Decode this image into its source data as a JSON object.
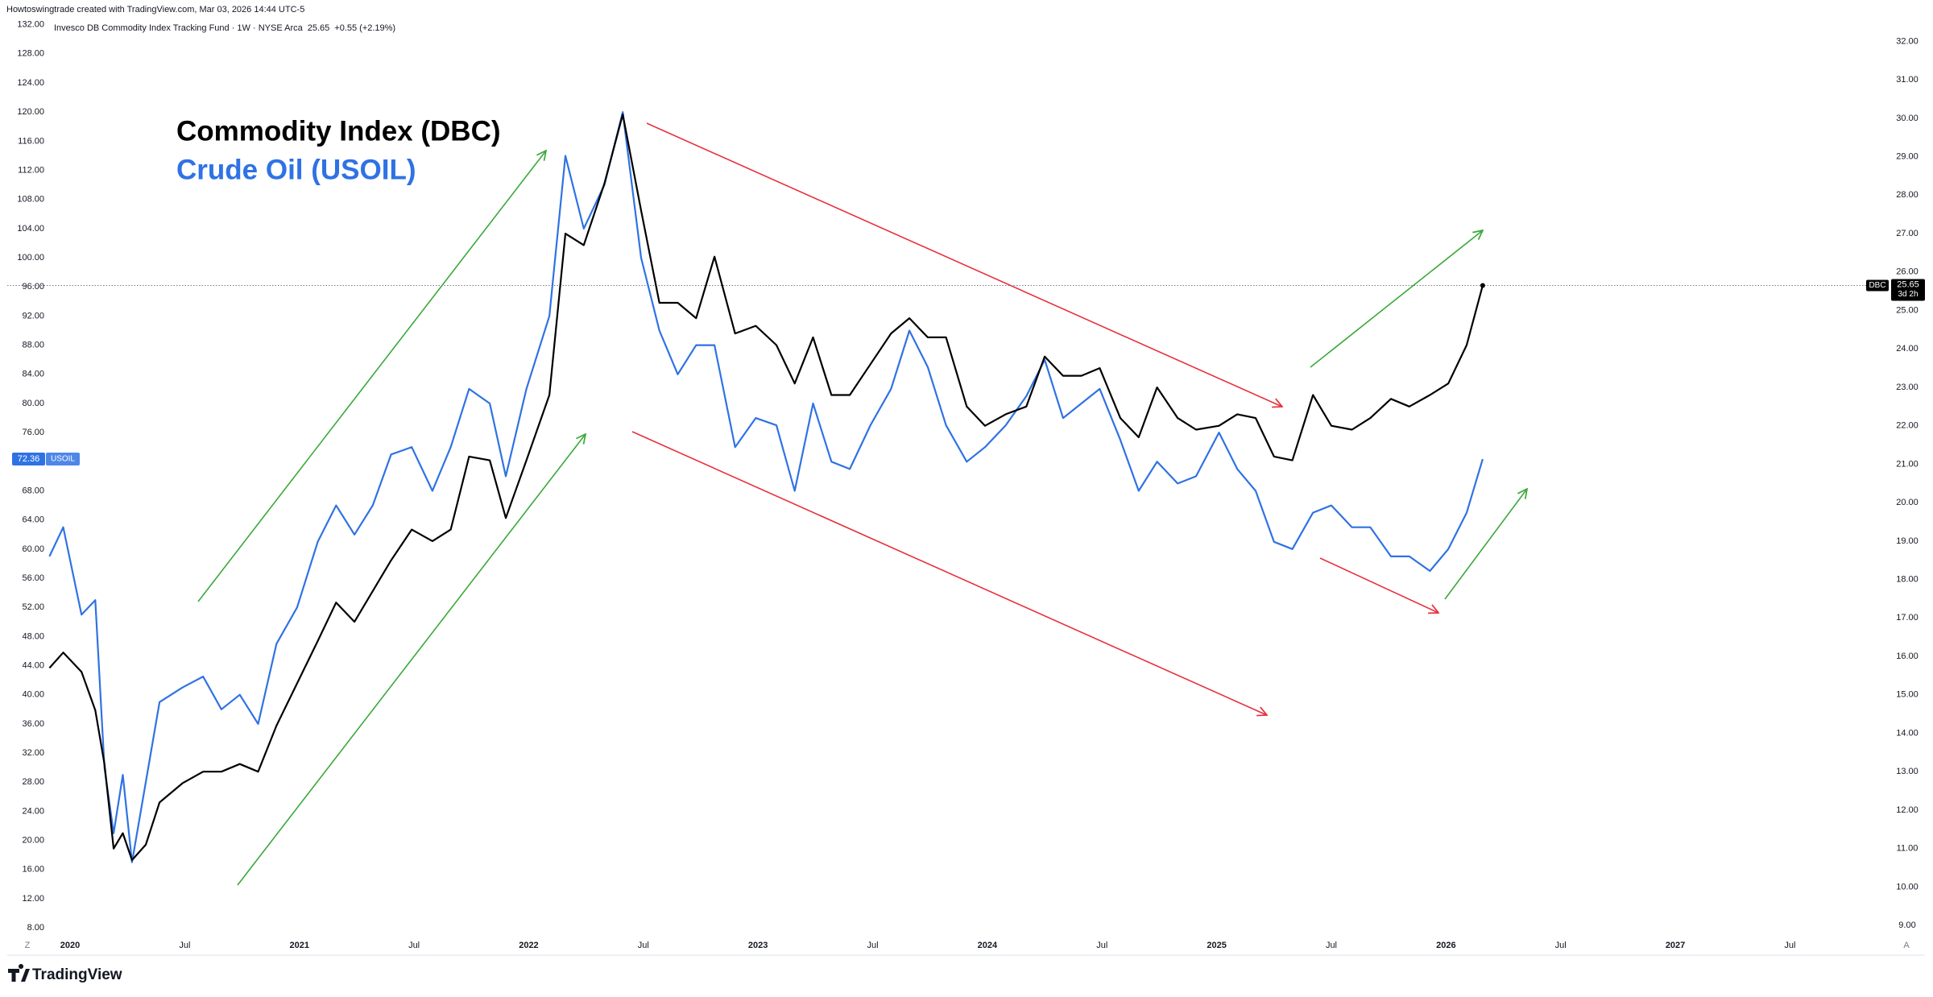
{
  "chart_data": {
    "type": "line",
    "attribution": "Howtoswingtrade created with TradingView.com, Mar 03, 2026 14:44 UTC-5",
    "symbol_title": "Invesco DB Commodity Index Tracking Fund · 1W · NYSE Arca",
    "change": "+0.55 (+2.19%)",
    "bar_countdown": "3d 2h",
    "scale_buttons": [
      "Z",
      "A"
    ],
    "brand": "TradingView",
    "grid": false,
    "x": [
      2019.91,
      2019.97,
      2020.05,
      2020.11,
      2020.15,
      2020.19,
      2020.23,
      2020.27,
      2020.33,
      2020.39,
      2020.49,
      2020.58,
      2020.66,
      2020.74,
      2020.82,
      2020.9,
      2020.99,
      2021.08,
      2021.16,
      2021.24,
      2021.32,
      2021.4,
      2021.49,
      2021.58,
      2021.66,
      2021.74,
      2021.83,
      2021.9,
      2021.99,
      2022.09,
      2022.16,
      2022.24,
      2022.33,
      2022.41,
      2022.49,
      2022.57,
      2022.65,
      2022.73,
      2022.81,
      2022.9,
      2022.99,
      2023.08,
      2023.16,
      2023.24,
      2023.32,
      2023.4,
      2023.49,
      2023.58,
      2023.66,
      2023.74,
      2023.82,
      2023.91,
      2023.99,
      2024.08,
      2024.17,
      2024.25,
      2024.33,
      2024.41,
      2024.49,
      2024.58,
      2024.66,
      2024.74,
      2024.83,
      2024.91,
      2025.01,
      2025.09,
      2025.17,
      2025.25,
      2025.33,
      2025.42,
      2025.5,
      2025.59,
      2025.67,
      2025.76,
      2025.84,
      2025.93,
      2026.01,
      2026.09,
      2026.16
    ],
    "xlim": [
      2019.726,
      2027.92
    ],
    "xticks": [
      2020,
      {
        "value": 2020.5,
        "label": "Jul"
      },
      2021,
      {
        "value": 2021.5,
        "label": "Jul"
      },
      2022,
      {
        "value": 2022.5,
        "label": "Jul"
      },
      2023,
      {
        "value": 2023.5,
        "label": "Jul"
      },
      2024,
      {
        "value": 2024.5,
        "label": "Jul"
      },
      2025,
      {
        "value": 2025.5,
        "label": "Jul"
      },
      2026,
      {
        "value": 2026.5,
        "label": "Jul"
      },
      2027,
      {
        "value": 2027.5,
        "label": "Jul"
      }
    ],
    "ylim": [
      6.8,
      133.4
    ],
    "yticks": [
      {
        "value": 8,
        "label": "8.00"
      },
      {
        "value": 12,
        "label": "12.00"
      },
      {
        "value": 16,
        "label": "16.00"
      },
      {
        "value": 20,
        "label": "20.00"
      },
      {
        "value": 24,
        "label": "24.00"
      },
      {
        "value": 28,
        "label": "28.00"
      },
      {
        "value": 32,
        "label": "32.00"
      },
      {
        "value": 36,
        "label": "36.00"
      },
      {
        "value": 40,
        "label": "40.00"
      },
      {
        "value": 44,
        "label": "44.00"
      },
      {
        "value": 48,
        "label": "48.00"
      },
      {
        "value": 52,
        "label": "52.00"
      },
      {
        "value": 56,
        "label": "56.00"
      },
      {
        "value": 60,
        "label": "60.00"
      },
      {
        "value": 64,
        "label": "64.00"
      },
      {
        "value": 68,
        "label": "68.00"
      },
      {
        "value": 72,
        "label": "72.00"
      },
      {
        "value": 76,
        "label": "76.00"
      },
      {
        "value": 80,
        "label": "80.00"
      },
      {
        "value": 84,
        "label": "84.00"
      },
      {
        "value": 88,
        "label": "88.00"
      },
      {
        "value": 92,
        "label": "92.00"
      },
      {
        "value": 96,
        "label": "96.00"
      },
      {
        "value": 100,
        "label": "100.00"
      },
      {
        "value": 104,
        "label": "104.00"
      },
      {
        "value": 108,
        "label": "108.00"
      },
      {
        "value": 112,
        "label": "112.00"
      },
      {
        "value": 116,
        "label": "116.00"
      },
      {
        "value": 120,
        "label": "120.00"
      },
      {
        "value": 124,
        "label": "124.00"
      },
      {
        "value": 128,
        "label": "128.00"
      },
      {
        "value": 132,
        "label": "132.00"
      }
    ],
    "y2lim": [
      8.71,
      32.7
    ],
    "y2ticks": [
      {
        "value": 9,
        "label": "9.00"
      },
      {
        "value": 10,
        "label": "10.00"
      },
      {
        "value": 11,
        "label": "11.00"
      },
      {
        "value": 12,
        "label": "12.00"
      },
      {
        "value": 13,
        "label": "13.00"
      },
      {
        "value": 14,
        "label": "14.00"
      },
      {
        "value": 15,
        "label": "15.00"
      },
      {
        "value": 16,
        "label": "16.00"
      },
      {
        "value": 17,
        "label": "17.00"
      },
      {
        "value": 18,
        "label": "18.00"
      },
      {
        "value": 19,
        "label": "19.00"
      },
      {
        "value": 20,
        "label": "20.00"
      },
      {
        "value": 21,
        "label": "21.00"
      },
      {
        "value": 22,
        "label": "22.00"
      },
      {
        "value": 23,
        "label": "23.00"
      },
      {
        "value": 24,
        "label": "24.00"
      },
      {
        "value": 25,
        "label": "25.00"
      },
      {
        "value": 26,
        "label": "26.00"
      },
      {
        "value": 27,
        "label": "27.00"
      },
      {
        "value": 28,
        "label": "28.00"
      },
      {
        "value": 29,
        "label": "29.00"
      },
      {
        "value": 30,
        "label": "30.00"
      },
      {
        "value": 31,
        "label": "31.00"
      },
      {
        "value": 32,
        "label": "32.00"
      }
    ],
    "series": [
      {
        "name": "Commodity Index (DBC)",
        "symbol": "DBC",
        "color": "#000000",
        "axis": "y2",
        "values": [
          15.7,
          16.1,
          15.6,
          14.6,
          13.2,
          11.0,
          11.4,
          10.7,
          11.1,
          12.2,
          12.7,
          13.0,
          13.0,
          13.2,
          13.0,
          14.2,
          15.3,
          16.4,
          17.4,
          16.9,
          17.7,
          18.5,
          19.3,
          19.0,
          19.3,
          21.2,
          21.1,
          19.6,
          21.1,
          22.8,
          27.0,
          26.7,
          28.3,
          30.1,
          27.6,
          25.2,
          25.2,
          24.8,
          26.4,
          24.4,
          24.6,
          24.1,
          23.1,
          24.3,
          22.8,
          22.8,
          23.6,
          24.4,
          24.8,
          24.3,
          24.3,
          22.5,
          22.0,
          22.3,
          22.5,
          23.8,
          23.3,
          23.3,
          23.5,
          22.2,
          21.7,
          23.0,
          22.2,
          21.9,
          22.0,
          22.3,
          22.2,
          21.2,
          21.1,
          22.8,
          22.0,
          21.9,
          22.2,
          22.7,
          22.5,
          22.8,
          23.1,
          24.1,
          25.65
        ]
      },
      {
        "name": "Crude Oil (USOIL)",
        "symbol": "USOIL",
        "color": "#2f72e4",
        "axis": "y",
        "values": [
          59,
          63,
          51,
          53,
          30,
          21,
          29,
          17,
          28,
          39,
          41,
          42.5,
          38,
          40,
          36,
          47,
          52,
          61,
          66,
          62,
          66,
          73,
          74,
          68,
          74,
          82,
          80,
          70,
          82,
          92,
          114,
          104,
          110,
          120,
          100,
          90,
          84,
          88,
          88,
          74,
          78,
          77,
          68,
          80,
          72,
          71,
          77,
          82,
          90,
          85,
          77,
          72,
          74,
          77,
          81,
          86,
          78,
          80,
          82,
          75,
          68,
          72,
          69,
          70,
          76,
          71,
          68,
          61,
          60,
          65,
          66,
          63,
          63,
          59,
          59,
          57,
          60,
          65,
          72.36
        ]
      }
    ]
  }
}
